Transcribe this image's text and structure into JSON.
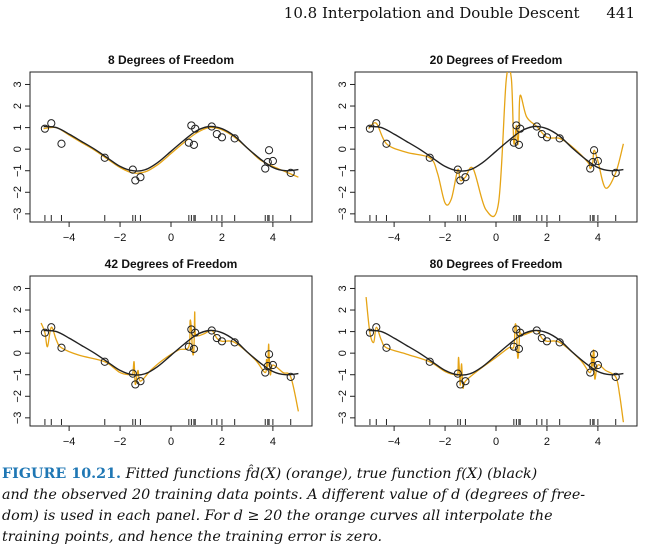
{
  "header": {
    "section_title": "10.8 Interpolation and Double Descent",
    "page_number": "441"
  },
  "caption": {
    "label": "FIGURE 10.21.",
    "lines": [
      "Fitted functions f̂d(X) (orange), true function f(X) (black)",
      "and the observed 20 training data points. A different value of d (degrees of free-",
      "dom) is used in each panel. For d ≥ 20 the orange curves all interpolate the",
      "training points, and hence the training error is zero."
    ]
  },
  "colors": {
    "fitted": "#e6a415",
    "truth": "#222222",
    "axis": "#222222"
  },
  "chart_data": [
    {
      "type": "line",
      "title": "8 Degrees of Freedom",
      "xlim": [
        -5.3,
        5.3
      ],
      "ylim": [
        -3.1,
        3.3
      ],
      "xticks": [
        -4,
        -2,
        0,
        2,
        4
      ],
      "yticks": [
        -3,
        -2,
        -1,
        0,
        1,
        2,
        3
      ],
      "fit_style": "smooth",
      "series": [
        {
          "color": "#222222",
          "x": [
            -5,
            -4.5,
            -4,
            -3.5,
            -3,
            -2.5,
            -2,
            -1.5,
            -1,
            -0.5,
            0,
            0.5,
            1,
            1.5,
            2,
            2.5,
            3,
            3.5,
            4,
            4.5,
            5
          ],
          "y": [
            1.05,
            1.0,
            0.7,
            0.35,
            0.0,
            -0.4,
            -0.8,
            -1.0,
            -0.95,
            -0.6,
            -0.1,
            0.4,
            0.85,
            1.05,
            0.95,
            0.6,
            0.05,
            -0.45,
            -0.85,
            -1.0,
            -0.95
          ]
        },
        {
          "color": "#e6a415",
          "x": [
            -5,
            -4.5,
            -4,
            -3.5,
            -3,
            -2.5,
            -2,
            -1.5,
            -1,
            -0.5,
            0,
            0.5,
            1,
            1.5,
            2,
            2.5,
            3,
            3.5,
            4,
            4.5,
            5
          ],
          "y": [
            0.95,
            1.0,
            0.65,
            0.3,
            -0.05,
            -0.45,
            -0.85,
            -1.1,
            -1.05,
            -0.7,
            -0.2,
            0.3,
            0.75,
            1.0,
            0.9,
            0.55,
            0.05,
            -0.5,
            -0.8,
            -1.05,
            -1.3
          ]
        }
      ],
      "points": [
        [
          -4.95,
          0.95
        ],
        [
          -4.7,
          1.2
        ],
        [
          -4.3,
          0.25
        ],
        [
          -2.6,
          -0.4
        ],
        [
          -1.5,
          -0.95
        ],
        [
          -1.4,
          -1.45
        ],
        [
          -1.2,
          -1.3
        ],
        [
          0.7,
          0.3
        ],
        [
          0.8,
          1.1
        ],
        [
          0.9,
          0.2
        ],
        [
          0.95,
          0.95
        ],
        [
          1.6,
          1.05
        ],
        [
          1.8,
          0.7
        ],
        [
          2.0,
          0.55
        ],
        [
          2.5,
          0.5
        ],
        [
          3.7,
          -0.9
        ],
        [
          3.8,
          -0.6
        ],
        [
          3.85,
          -0.05
        ],
        [
          4.0,
          -0.55
        ],
        [
          4.7,
          -1.1
        ]
      ],
      "rug": [
        -4.95,
        -4.7,
        -4.3,
        -2.6,
        -1.5,
        -1.4,
        -1.2,
        0.7,
        0.8,
        0.9,
        0.95,
        1.6,
        1.8,
        2.0,
        2.5,
        3.7,
        3.8,
        3.85,
        4.0,
        4.7
      ]
    },
    {
      "type": "line",
      "title": "20 Degrees of Freedom",
      "xlim": [
        -5.3,
        5.3
      ],
      "ylim": [
        -3.1,
        3.3
      ],
      "xticks": [
        -4,
        -2,
        0,
        2,
        4
      ],
      "yticks": [
        -3,
        -2,
        -1,
        0,
        1,
        2,
        3
      ],
      "fit_style": "wiggly20",
      "series": [
        {
          "color": "#222222",
          "x": [
            -5,
            -4.5,
            -4,
            -3.5,
            -3,
            -2.5,
            -2,
            -1.5,
            -1,
            -0.5,
            0,
            0.5,
            1,
            1.5,
            2,
            2.5,
            3,
            3.5,
            4,
            4.5,
            5
          ],
          "y": [
            1.05,
            1.0,
            0.7,
            0.35,
            0.0,
            -0.4,
            -0.8,
            -1.0,
            -0.95,
            -0.6,
            -0.1,
            0.4,
            0.85,
            1.05,
            0.95,
            0.6,
            0.05,
            -0.45,
            -0.85,
            -1.0,
            -0.95
          ]
        },
        {
          "color": "#e6a415",
          "x": [
            -5,
            -4.7,
            -4.3,
            -3.5,
            -2.6,
            -2.3,
            -2.0,
            -1.75,
            -1.5,
            -1.4,
            -1.2,
            -0.9,
            -0.4,
            0.1,
            0.4,
            0.6,
            0.7,
            0.8,
            0.85,
            0.9,
            0.95,
            1.2,
            1.6,
            2.0,
            2.5,
            3.0,
            3.6,
            3.7,
            3.8,
            3.85,
            4.0,
            4.3,
            4.7,
            5.0
          ],
          "y": [
            0.95,
            1.2,
            0.25,
            -0.15,
            -0.4,
            -1.1,
            -2.5,
            -2.3,
            -0.95,
            -1.45,
            -1.3,
            -0.9,
            -2.8,
            -2.5,
            3.2,
            3.3,
            0.3,
            1.1,
            0.2,
            0.95,
            2.5,
            1.5,
            1.05,
            0.55,
            0.5,
            0.1,
            -0.6,
            -0.9,
            -0.6,
            -0.05,
            -0.55,
            -1.8,
            -1.1,
            0.25
          ]
        }
      ],
      "points": [
        [
          -4.95,
          0.95
        ],
        [
          -4.7,
          1.2
        ],
        [
          -4.3,
          0.25
        ],
        [
          -2.6,
          -0.4
        ],
        [
          -1.5,
          -0.95
        ],
        [
          -1.4,
          -1.45
        ],
        [
          -1.2,
          -1.3
        ],
        [
          0.7,
          0.3
        ],
        [
          0.8,
          1.1
        ],
        [
          0.9,
          0.2
        ],
        [
          0.95,
          0.95
        ],
        [
          1.6,
          1.05
        ],
        [
          1.8,
          0.7
        ],
        [
          2.0,
          0.55
        ],
        [
          2.5,
          0.5
        ],
        [
          3.7,
          -0.9
        ],
        [
          3.8,
          -0.6
        ],
        [
          3.85,
          -0.05
        ],
        [
          4.0,
          -0.55
        ],
        [
          4.7,
          -1.1
        ]
      ],
      "rug": [
        -4.95,
        -4.7,
        -4.3,
        -2.6,
        -1.5,
        -1.4,
        -1.2,
        0.7,
        0.8,
        0.9,
        0.95,
        1.6,
        1.8,
        2.0,
        2.5,
        3.7,
        3.8,
        3.85,
        4.0,
        4.7
      ]
    },
    {
      "type": "line",
      "title": "42 Degrees of Freedom",
      "xlim": [
        -5.3,
        5.3
      ],
      "ylim": [
        -3.1,
        3.3
      ],
      "xticks": [
        -4,
        -2,
        0,
        2,
        4
      ],
      "yticks": [
        -3,
        -2,
        -1,
        0,
        1,
        2,
        3
      ],
      "fit_style": "wiggly42",
      "series": [
        {
          "color": "#222222",
          "x": [
            -5,
            -4.5,
            -4,
            -3.5,
            -3,
            -2.5,
            -2,
            -1.5,
            -1,
            -0.5,
            0,
            0.5,
            1,
            1.5,
            2,
            2.5,
            3,
            3.5,
            4,
            4.5,
            5
          ],
          "y": [
            1.05,
            1.0,
            0.7,
            0.35,
            0.0,
            -0.4,
            -0.8,
            -1.0,
            -0.95,
            -0.6,
            -0.1,
            0.4,
            0.85,
            1.05,
            0.95,
            0.6,
            0.05,
            -0.45,
            -0.85,
            -1.0,
            -0.95
          ]
        },
        {
          "color": "#e6a415",
          "x": [
            -5.1,
            -4.95,
            -4.85,
            -4.7,
            -4.5,
            -4.3,
            -3.6,
            -2.6,
            -2.0,
            -1.6,
            -1.5,
            -1.45,
            -1.4,
            -1.3,
            -1.2,
            -0.8,
            -0.3,
            0.3,
            0.7,
            0.75,
            0.8,
            0.85,
            0.9,
            0.93,
            0.95,
            1.05,
            1.3,
            1.6,
            1.8,
            2.0,
            2.5,
            3.3,
            3.7,
            3.75,
            3.8,
            3.83,
            3.85,
            3.9,
            4.0,
            4.4,
            4.7,
            5.0
          ],
          "y": [
            1.4,
            0.95,
            0.3,
            1.2,
            0.6,
            0.25,
            -0.1,
            -0.4,
            -0.9,
            -1.0,
            -0.95,
            -0.4,
            -1.45,
            -0.8,
            -1.3,
            -0.8,
            -0.3,
            0.15,
            0.3,
            1.5,
            1.1,
            0.0,
            0.2,
            1.9,
            0.95,
            0.8,
            0.9,
            1.05,
            0.7,
            0.55,
            0.5,
            -0.3,
            -0.9,
            -0.3,
            -0.6,
            0.4,
            -0.05,
            -1.0,
            -0.55,
            -0.9,
            -1.1,
            -2.7
          ]
        }
      ],
      "points": [
        [
          -4.95,
          0.95
        ],
        [
          -4.7,
          1.2
        ],
        [
          -4.3,
          0.25
        ],
        [
          -2.6,
          -0.4
        ],
        [
          -1.5,
          -0.95
        ],
        [
          -1.4,
          -1.45
        ],
        [
          -1.2,
          -1.3
        ],
        [
          0.7,
          0.3
        ],
        [
          0.8,
          1.1
        ],
        [
          0.9,
          0.2
        ],
        [
          0.95,
          0.95
        ],
        [
          1.6,
          1.05
        ],
        [
          1.8,
          0.7
        ],
        [
          2.0,
          0.55
        ],
        [
          2.5,
          0.5
        ],
        [
          3.7,
          -0.9
        ],
        [
          3.8,
          -0.6
        ],
        [
          3.85,
          -0.05
        ],
        [
          4.0,
          -0.55
        ],
        [
          4.7,
          -1.1
        ]
      ],
      "rug": [
        -4.95,
        -4.7,
        -4.3,
        -2.6,
        -1.5,
        -1.4,
        -1.2,
        0.7,
        0.8,
        0.9,
        0.95,
        1.6,
        1.8,
        2.0,
        2.5,
        3.7,
        3.8,
        3.85,
        4.0,
        4.7
      ]
    },
    {
      "type": "line",
      "title": "80 Degrees of Freedom",
      "xlim": [
        -5.3,
        5.3
      ],
      "ylim": [
        -3.1,
        3.3
      ],
      "xticks": [
        -4,
        -2,
        0,
        2,
        4
      ],
      "yticks": [
        -3,
        -2,
        -1,
        0,
        1,
        2,
        3
      ],
      "fit_style": "wiggly80",
      "series": [
        {
          "color": "#222222",
          "x": [
            -5,
            -4.5,
            -4,
            -3.5,
            -3,
            -2.5,
            -2,
            -1.5,
            -1,
            -0.5,
            0,
            0.5,
            1,
            1.5,
            2,
            2.5,
            3,
            3.5,
            4,
            4.5,
            5
          ],
          "y": [
            1.05,
            1.0,
            0.7,
            0.35,
            0.0,
            -0.4,
            -0.8,
            -1.0,
            -0.95,
            -0.6,
            -0.1,
            0.4,
            0.85,
            1.05,
            0.95,
            0.6,
            0.05,
            -0.45,
            -0.85,
            -1.0,
            -0.95
          ]
        },
        {
          "color": "#e6a415",
          "x": [
            -5.1,
            -4.95,
            -4.8,
            -4.7,
            -4.5,
            -4.3,
            -3.5,
            -2.6,
            -2.0,
            -1.6,
            -1.5,
            -1.47,
            -1.42,
            -1.4,
            -1.35,
            -1.3,
            -1.2,
            -0.7,
            0.0,
            0.5,
            0.7,
            0.75,
            0.8,
            0.85,
            0.9,
            0.93,
            0.95,
            1.1,
            1.6,
            1.8,
            2.0,
            2.5,
            3.3,
            3.7,
            3.75,
            3.8,
            3.82,
            3.85,
            3.88,
            4.0,
            4.3,
            4.7,
            4.85,
            5.0
          ],
          "y": [
            2.6,
            0.95,
            0.5,
            1.2,
            0.6,
            0.25,
            -0.05,
            -0.4,
            -0.85,
            -1.0,
            -0.95,
            -0.2,
            -1.2,
            -1.45,
            -0.5,
            -1.6,
            -1.3,
            -0.8,
            -0.2,
            0.25,
            0.3,
            1.3,
            1.1,
            -0.2,
            0.2,
            1.1,
            0.95,
            0.85,
            1.05,
            0.7,
            0.55,
            0.5,
            -0.3,
            -0.9,
            -0.1,
            -0.6,
            0.1,
            -0.05,
            -1.2,
            -0.55,
            -0.8,
            -1.1,
            -1.9,
            -3.2
          ]
        }
      ],
      "points": [
        [
          -4.95,
          0.95
        ],
        [
          -4.7,
          1.2
        ],
        [
          -4.3,
          0.25
        ],
        [
          -2.6,
          -0.4
        ],
        [
          -1.5,
          -0.95
        ],
        [
          -1.4,
          -1.45
        ],
        [
          -1.2,
          -1.3
        ],
        [
          0.7,
          0.3
        ],
        [
          0.8,
          1.1
        ],
        [
          0.9,
          0.2
        ],
        [
          0.95,
          0.95
        ],
        [
          1.6,
          1.05
        ],
        [
          1.8,
          0.7
        ],
        [
          2.0,
          0.55
        ],
        [
          2.5,
          0.5
        ],
        [
          3.7,
          -0.9
        ],
        [
          3.8,
          -0.6
        ],
        [
          3.85,
          -0.05
        ],
        [
          4.0,
          -0.55
        ],
        [
          4.7,
          -1.1
        ]
      ],
      "rug": [
        -4.95,
        -4.7,
        -4.3,
        -2.6,
        -1.5,
        -1.4,
        -1.2,
        0.7,
        0.8,
        0.9,
        0.95,
        1.6,
        1.8,
        2.0,
        2.5,
        3.7,
        3.8,
        3.85,
        4.0,
        4.7
      ]
    }
  ]
}
